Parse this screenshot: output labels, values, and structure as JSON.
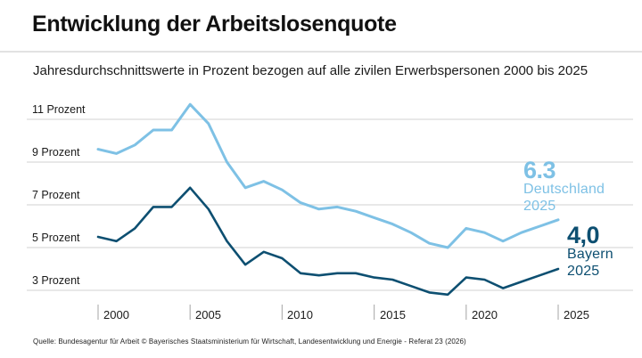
{
  "header": {
    "title": "Entwicklung der Arbeitslosenquote",
    "subtitle": "Jahresdurchschnittswerte in Prozent bezogen auf alle zivilen Erwerbspersonen 2000 bis 2025"
  },
  "chart_data": {
    "type": "line",
    "title": "Entwicklung der Arbeitslosenquote",
    "subtitle": "Jahresdurchschnittswerte in Prozent bezogen auf alle zivilen Erwerbspersonen 2000 bis 2025",
    "unit": "Prozent",
    "x": [
      2000,
      2001,
      2002,
      2003,
      2004,
      2005,
      2006,
      2007,
      2008,
      2009,
      2010,
      2011,
      2012,
      2013,
      2014,
      2015,
      2016,
      2017,
      2018,
      2019,
      2020,
      2021,
      2022,
      2023,
      2024,
      2025
    ],
    "series": [
      {
        "name": "Deutschland",
        "color": "#7ec1e5",
        "values": [
          9.6,
          9.4,
          9.8,
          10.5,
          10.5,
          11.7,
          10.8,
          9.0,
          7.8,
          8.1,
          7.7,
          7.1,
          6.8,
          6.9,
          6.7,
          6.4,
          6.1,
          5.7,
          5.2,
          5.0,
          5.9,
          5.7,
          5.3,
          5.7,
          6.0,
          6.3
        ],
        "end_label": {
          "value": "6.3",
          "name": "Deutschland",
          "year": "2025"
        }
      },
      {
        "name": "Bayern",
        "color": "#0d4f71",
        "values": [
          5.5,
          5.3,
          5.9,
          6.9,
          6.9,
          7.8,
          6.8,
          5.3,
          4.2,
          4.8,
          4.5,
          3.8,
          3.7,
          3.8,
          3.8,
          3.6,
          3.5,
          3.2,
          2.9,
          2.8,
          3.6,
          3.5,
          3.1,
          3.4,
          3.7,
          4.0
        ],
        "end_label": {
          "value": "4,0",
          "name": "Bayern",
          "year": "2025"
        }
      }
    ],
    "y_ticks": [
      11,
      9,
      7,
      5,
      3
    ],
    "y_tick_labels": [
      "11 Prozent",
      "9 Prozent",
      "7 Prozent",
      "5 Prozent",
      "3 Prozent"
    ],
    "x_ticks": [
      2000,
      2005,
      2010,
      2015,
      2020,
      2025
    ],
    "x_tick_labels": [
      "2000",
      "2005",
      "2010",
      "2015",
      "2020",
      "2025"
    ],
    "ylim": [
      2.5,
      12.2
    ],
    "grid": true,
    "gridline_color": "#e0e0e0",
    "tick_color": "#b3b3b3",
    "legend_position": "inline-end-labels"
  },
  "footer": {
    "source": "Quelle: Bundesagentur für Arbeit © Bayerisches Staatsministerium für Wirtschaft, Landesentwicklung und Energie - Referat 23 (2026)"
  }
}
